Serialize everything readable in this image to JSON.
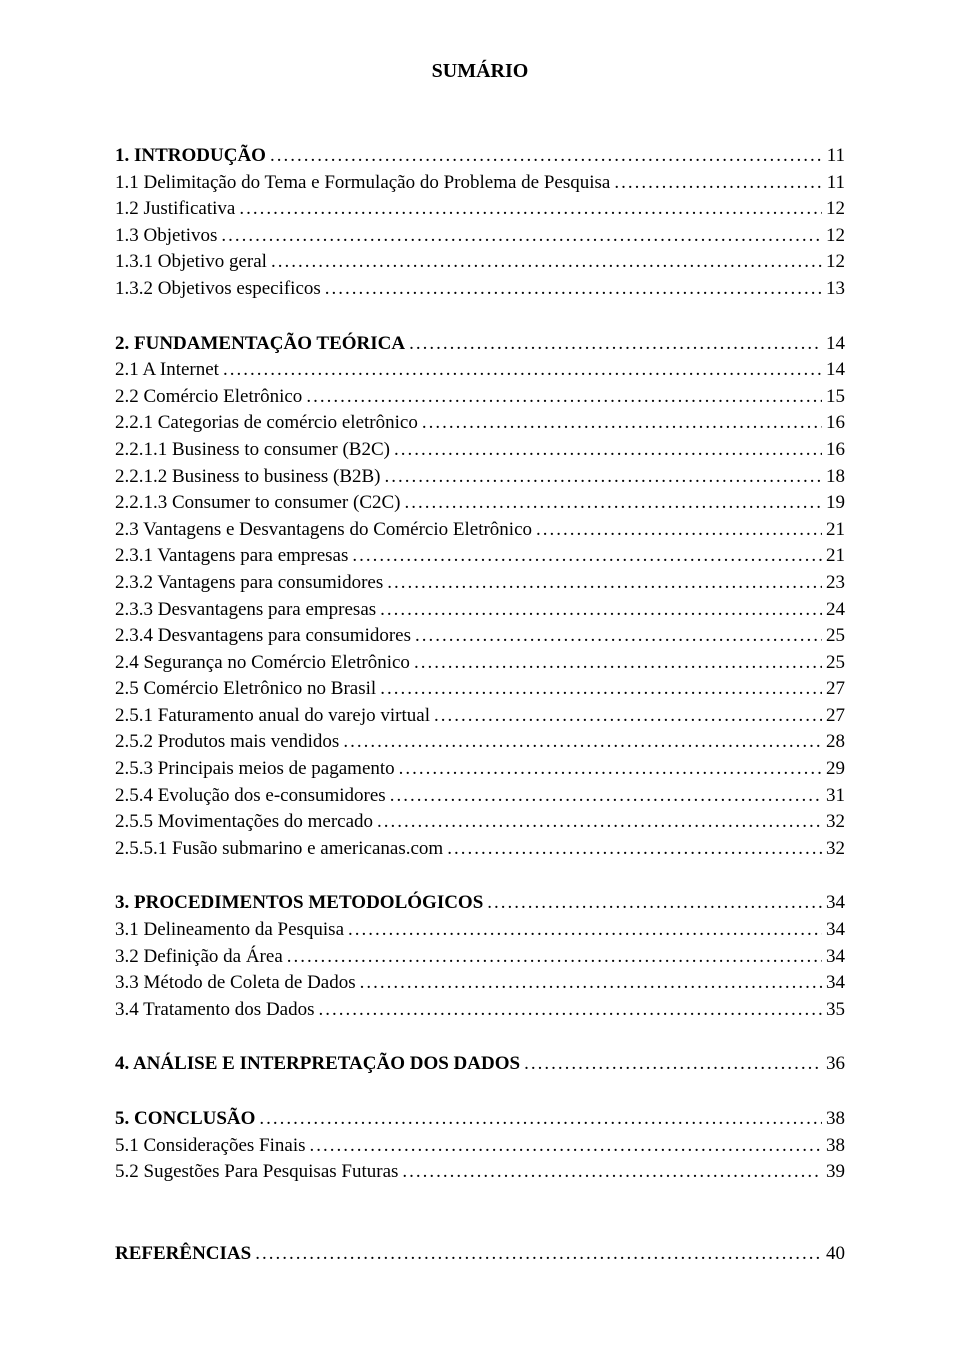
{
  "title": "SUMÁRIO",
  "sections": [
    {
      "entries": [
        {
          "label": "1. INTRODUÇÃO",
          "page": "11",
          "bold": true
        },
        {
          "label": "1.1 Delimitação do Tema e Formulação do Problema de Pesquisa",
          "page": "11",
          "bold": false
        },
        {
          "label": "1.2 Justificativa",
          "page": "12",
          "bold": false
        },
        {
          "label": "1.3 Objetivos",
          "page": "12",
          "bold": false
        },
        {
          "label": "1.3.1 Objetivo geral",
          "page": "12",
          "bold": false
        },
        {
          "label": "1.3.2 Objetivos especificos",
          "page": "13",
          "bold": false
        }
      ]
    },
    {
      "entries": [
        {
          "label": "2. FUNDAMENTAÇÃO TEÓRICA",
          "page": "14",
          "bold": true
        },
        {
          "label": "2.1 A Internet",
          "page": "14",
          "bold": false
        },
        {
          "label": "2.2 Comércio Eletrônico",
          "page": "15",
          "bold": false
        },
        {
          "label": "2.2.1 Categorias de comércio eletrônico",
          "page": "16",
          "bold": false
        },
        {
          "label": "2.2.1.1 Business to consumer (B2C)",
          "page": "16",
          "bold": false
        },
        {
          "label": "2.2.1.2 Business to business (B2B)",
          "page": "18",
          "bold": false
        },
        {
          "label": "2.2.1.3 Consumer to consumer (C2C)",
          "page": "19",
          "bold": false
        },
        {
          "label": "2.3 Vantagens e Desvantagens do Comércio Eletrônico",
          "page": "21",
          "bold": false
        },
        {
          "label": "2.3.1 Vantagens para empresas",
          "page": "21",
          "bold": false
        },
        {
          "label": "2.3.2 Vantagens para consumidores",
          "page": "23",
          "bold": false
        },
        {
          "label": "2.3.3 Desvantagens para empresas",
          "page": "24",
          "bold": false
        },
        {
          "label": "2.3.4 Desvantagens para consumidores",
          "page": "25",
          "bold": false
        },
        {
          "label": "2.4 Segurança no Comércio Eletrônico",
          "page": "25",
          "bold": false
        },
        {
          "label": "2.5 Comércio Eletrônico no Brasil",
          "page": "27",
          "bold": false
        },
        {
          "label": "2.5.1 Faturamento anual do varejo virtual",
          "page": "27",
          "bold": false
        },
        {
          "label": "2.5.2 Produtos mais vendidos",
          "page": "28",
          "bold": false
        },
        {
          "label": "2.5.3 Principais meios de pagamento",
          "page": "29",
          "bold": false
        },
        {
          "label": "2.5.4 Evolução dos e-consumidores",
          "page": "31",
          "bold": false
        },
        {
          "label": "2.5.5 Movimentações do mercado",
          "page": "32",
          "bold": false
        },
        {
          "label": "2.5.5.1 Fusão submarino e americanas.com",
          "page": "32",
          "bold": false
        }
      ]
    },
    {
      "entries": [
        {
          "label": "3. PROCEDIMENTOS METODOLÓGICOS",
          "page": "34",
          "bold": true
        },
        {
          "label": "3.1 Delineamento da Pesquisa",
          "page": "34",
          "bold": false
        },
        {
          "label": "3.2 Definição da Área",
          "page": "34",
          "bold": false
        },
        {
          "label": "3.3 Método de Coleta de Dados",
          "page": "34",
          "bold": false
        },
        {
          "label": "3.4 Tratamento dos Dados",
          "page": "35",
          "bold": false
        }
      ]
    },
    {
      "entries": [
        {
          "label": "4. ANÁLISE E INTERPRETAÇÃO DOS DADOS",
          "page": "36",
          "bold": true
        }
      ]
    },
    {
      "entries": [
        {
          "label": "5. CONCLUSÃO",
          "page": "38",
          "bold": true
        },
        {
          "label": "5.1 Considerações Finais",
          "page": "38",
          "bold": false
        },
        {
          "label": "5.2 Sugestões Para Pesquisas Futuras",
          "page": "39",
          "bold": false
        }
      ]
    }
  ],
  "references": {
    "label": "REFERÊNCIAS",
    "page": "40",
    "bold": true
  }
}
